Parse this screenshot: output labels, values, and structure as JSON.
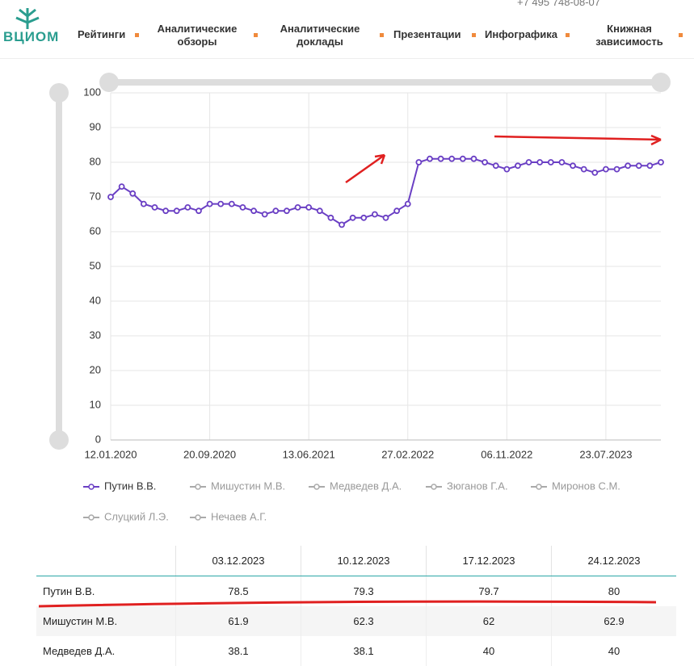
{
  "header": {
    "logo": "ВЦИОМ",
    "phone": "+7 495 748-08-07",
    "nav": [
      "Рейтинги",
      "Аналитические обзоры",
      "Аналитические доклады",
      "Презентации",
      "Инфографика",
      "Книжная зависимость"
    ]
  },
  "chart_data": {
    "type": "line",
    "categories": [
      "12.01.2020",
      null,
      null,
      null,
      null,
      null,
      null,
      null,
      null,
      "20.09.2020",
      null,
      null,
      null,
      null,
      null,
      null,
      null,
      null,
      "13.06.2021",
      null,
      null,
      null,
      null,
      null,
      null,
      null,
      null,
      "27.02.2022",
      null,
      null,
      null,
      null,
      null,
      null,
      null,
      null,
      "06.11.2022",
      null,
      null,
      null,
      null,
      null,
      null,
      null,
      null,
      "23.07.2023",
      null,
      null,
      null,
      null,
      null
    ],
    "series": [
      {
        "name": "Путин В.В.",
        "color": "#6a3fc4",
        "values": [
          70,
          73,
          71,
          68,
          67,
          66,
          66,
          67,
          66,
          68,
          68,
          68,
          67,
          66,
          65,
          66,
          66,
          67,
          67,
          66,
          64,
          62,
          64,
          64,
          65,
          64,
          66,
          68,
          80,
          81,
          81,
          81,
          81,
          81,
          80,
          79,
          78,
          79,
          80,
          80,
          80,
          80,
          79,
          78,
          77,
          78,
          78,
          79,
          79,
          79,
          80
        ]
      }
    ],
    "hidden_series": [
      "Мишустин М.В.",
      "Медведев Д.А.",
      "Зюганов Г.А.",
      "Миронов С.М.",
      "Слуцкий Л.Э.",
      "Нечаев А.Г."
    ],
    "ylim": [
      0,
      100
    ],
    "yticks": [
      0,
      10,
      20,
      30,
      40,
      50,
      60,
      70,
      80,
      90,
      100
    ],
    "grid": true
  },
  "table": {
    "columns": [
      "03.12.2023",
      "10.12.2023",
      "17.12.2023",
      "24.12.2023"
    ],
    "rows": [
      [
        "Путин В.В.",
        78.5,
        79.3,
        79.7,
        80
      ],
      [
        "Мишустин М.В.",
        61.9,
        62.3,
        62,
        62.9
      ],
      [
        "Медведев Д.А.",
        38.1,
        38.1,
        40,
        40
      ]
    ]
  }
}
